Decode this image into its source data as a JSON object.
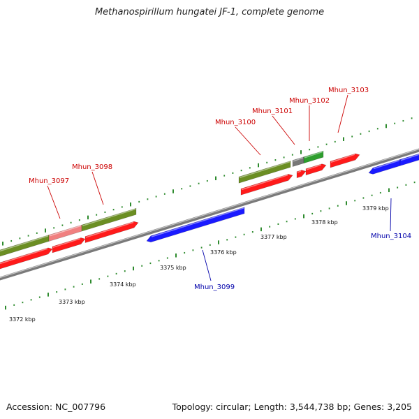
{
  "title": "Methanospirillum hungatei JF-1, complete genome",
  "footer": {
    "accession": "Accession: NC_007796",
    "topology": "Topology: circular; Length: 3,544,738 bp; Genes: 3,205"
  },
  "colors": {
    "tick": "#2e8b2e",
    "backbone": "#888888",
    "gene_red": "#ff1a1a",
    "gene_olive": "#6b8e23",
    "gene_pink": "#f08080",
    "gene_green": "#2e9e2e",
    "gene_gray": "#777777",
    "gene_blue": "#1a1aff",
    "label_red": "#cc0000",
    "label_blue": "#0000aa"
  },
  "kbp_labels": [
    "3372 kbp",
    "3373 kbp",
    "3374 kbp",
    "3375 kbp",
    "3376 kbp",
    "3377 kbp",
    "3378 kbp",
    "3379 kbp"
  ],
  "gene_labels": [
    {
      "name": "Mhun_3097",
      "strand": "plus"
    },
    {
      "name": "Mhun_3098",
      "strand": "plus"
    },
    {
      "name": "Mhun_3099",
      "strand": "minus"
    },
    {
      "name": "Mhun_3100",
      "strand": "plus"
    },
    {
      "name": "Mhun_3101",
      "strand": "plus"
    },
    {
      "name": "Mhun_3102",
      "strand": "plus"
    },
    {
      "name": "Mhun_3103",
      "strand": "plus"
    },
    {
      "name": "Mhun_3104",
      "strand": "minus"
    }
  ]
}
